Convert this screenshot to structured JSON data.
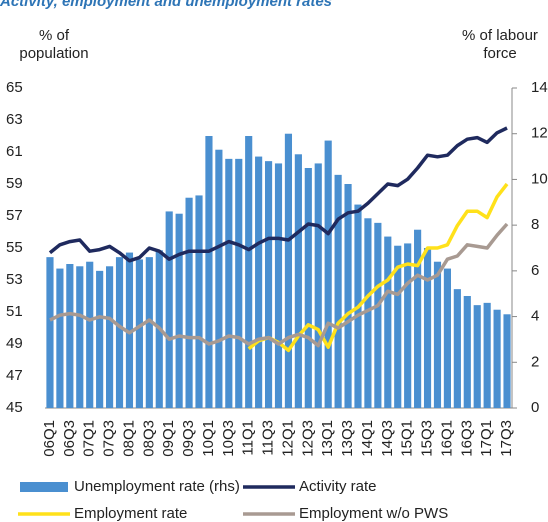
{
  "chart_data": {
    "type": "combo",
    "title": "Activity, employment and unemployment rates",
    "ylabel": "% of population",
    "y2label": "% of labour force",
    "categories": [
      "06Q1",
      null,
      "06Q3",
      null,
      "07Q1",
      null,
      "07Q3",
      null,
      "08Q1",
      null,
      "08Q3",
      null,
      "09Q1",
      null,
      "09Q3",
      null,
      "10Q1",
      null,
      "10Q3",
      null,
      "11Q1",
      null,
      "11Q3",
      null,
      "12Q1",
      null,
      "12Q3",
      null,
      "13Q1",
      null,
      "13Q3",
      null,
      "14Q1",
      null,
      "14Q3",
      null,
      "15Q1",
      null,
      "15Q3",
      null,
      "16Q1",
      null,
      "16Q3",
      null,
      "17Q1",
      null,
      "17Q3"
    ],
    "ylim": [
      45,
      65
    ],
    "yticks": [
      45,
      47,
      49,
      51,
      53,
      55,
      57,
      59,
      61,
      63,
      65
    ],
    "y2lim": [
      0,
      14
    ],
    "y2ticks": [
      0,
      2,
      4,
      6,
      8,
      10,
      12,
      14
    ],
    "series": [
      {
        "name": "Unemployment rate (rhs)",
        "type": "bar",
        "axis": "y2",
        "color": "#4a8fd0",
        "values": [
          6.6,
          6.1,
          6.3,
          6.2,
          6.4,
          6.0,
          6.2,
          6.6,
          6.8,
          6.5,
          6.6,
          6.9,
          8.6,
          8.5,
          9.2,
          9.3,
          11.9,
          11.3,
          10.9,
          10.9,
          11.9,
          11.0,
          10.8,
          10.7,
          12.0,
          11.1,
          10.5,
          10.7,
          11.7,
          10.2,
          9.8,
          8.9,
          8.3,
          8.1,
          7.5,
          7.1,
          7.2,
          7.8,
          7.0,
          6.4,
          6.1,
          5.2,
          4.9,
          4.5,
          4.6,
          4.3,
          4.1
        ]
      },
      {
        "name": "Activity rate",
        "type": "line",
        "color": "#1f2a5e",
        "values": [
          54.7,
          55.2,
          55.4,
          55.5,
          54.8,
          54.9,
          55.1,
          54.7,
          54.2,
          54.4,
          55.0,
          54.8,
          54.3,
          54.6,
          54.8,
          54.8,
          54.8,
          55.1,
          55.4,
          55.2,
          54.9,
          55.3,
          55.6,
          55.6,
          55.5,
          56.0,
          56.5,
          56.4,
          55.9,
          56.8,
          57.2,
          57.3,
          57.8,
          58.4,
          59.0,
          58.9,
          59.3,
          60.0,
          60.8,
          60.7,
          60.8,
          61.4,
          61.8,
          61.9,
          61.6,
          62.2,
          62.5
        ]
      },
      {
        "name": "Employment rate",
        "type": "line",
        "color": "#ffe11a",
        "values": [
          null,
          null,
          null,
          null,
          null,
          null,
          null,
          null,
          null,
          null,
          null,
          null,
          null,
          null,
          null,
          null,
          null,
          null,
          null,
          null,
          48.7,
          49.2,
          49.4,
          49.1,
          48.6,
          49.5,
          50.2,
          49.9,
          48.8,
          50.3,
          50.9,
          51.3,
          52.0,
          52.6,
          53.0,
          53.8,
          54.0,
          53.9,
          55.0,
          55.0,
          55.2,
          56.4,
          57.3,
          57.3,
          56.9,
          58.2,
          59.0
        ]
      },
      {
        "name": "Employment w/o PWS",
        "type": "line",
        "color": "#a89a92",
        "values": [
          50.5,
          50.8,
          50.9,
          50.8,
          50.5,
          50.7,
          50.6,
          50.1,
          49.7,
          50.1,
          50.5,
          50.0,
          49.3,
          49.5,
          49.4,
          49.4,
          49.0,
          49.2,
          49.5,
          49.4,
          49.0,
          49.3,
          49.4,
          49.0,
          49.4,
          49.6,
          49.4,
          48.9,
          50.3,
          50.0,
          50.4,
          50.8,
          51.1,
          51.4,
          52.3,
          52.1,
          52.8,
          53.3,
          53.0,
          53.3,
          54.3,
          54.5,
          55.2,
          55.1,
          55.0,
          55.8,
          56.5
        ]
      }
    ]
  }
}
